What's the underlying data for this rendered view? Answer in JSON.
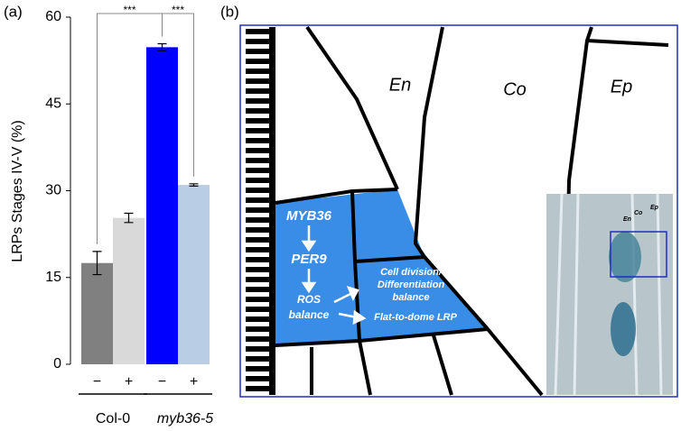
{
  "chart_data": {
    "type": "bar",
    "panel_label": "(a)",
    "ylabel": "LRPs Stages IV-V (%)",
    "categories": [
      "−",
      "+",
      "−",
      "+"
    ],
    "values": [
      17.5,
      25.3,
      54.8,
      31
    ],
    "errors": [
      2,
      0.8,
      0.6,
      0.2
    ],
    "colors": [
      "#808080",
      "#d9d9d9",
      "#0000ff",
      "#b9cde5"
    ],
    "groups": [
      "Col-0",
      "myb36-5"
    ],
    "significance": [
      "***",
      "***"
    ],
    "ylim": [
      0,
      60
    ],
    "yticks": [
      0,
      15,
      30,
      45,
      60
    ]
  },
  "diagram": {
    "panel_label": "(b)",
    "cells": [
      "En",
      "Co",
      "Ep"
    ],
    "steps": [
      "MYB36",
      "PER9"
    ],
    "ros": [
      "ROS",
      "balance"
    ],
    "division": [
      "Cell division/",
      "Differentiation",
      "balance"
    ],
    "shape": "Flat-to-dome LRP",
    "inset_labels": [
      "Ep",
      "Co",
      "En"
    ]
  }
}
